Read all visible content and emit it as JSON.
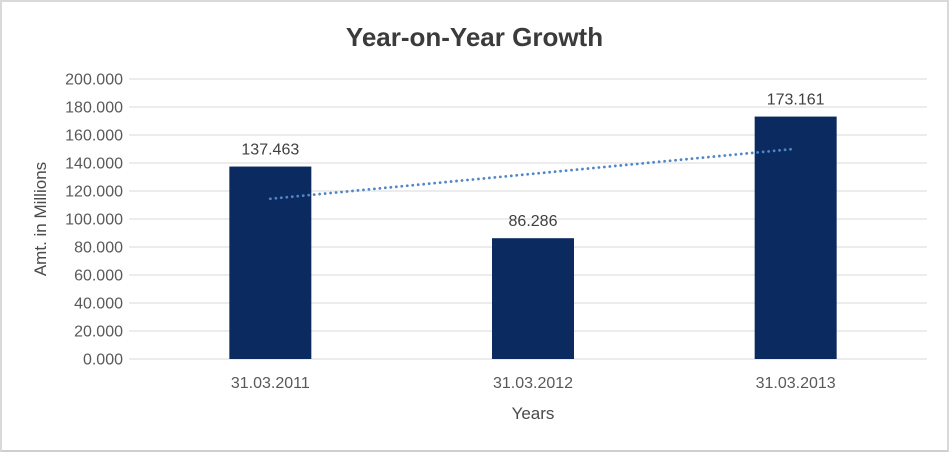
{
  "window": {
    "background": "#ffffff",
    "border_color": "#d9d9d9"
  },
  "chart_data": {
    "type": "bar",
    "title": "Year-on-Year Growth",
    "categories": [
      "31.03.2011",
      "31.03.2012",
      "31.03.2013"
    ],
    "values": [
      137.463,
      86.286,
      173.161
    ],
    "value_labels": [
      "137.463",
      "86.286",
      "173.161"
    ],
    "xlabel": "Years",
    "ylabel": "Amt. in Millions",
    "ylim": [
      0,
      200
    ],
    "ytick_step": 20,
    "ytick_labels": [
      "0.000",
      "20.000",
      "40.000",
      "60.000",
      "80.000",
      "100.000",
      "120.000",
      "140.000",
      "160.000",
      "180.000",
      "200.000"
    ],
    "grid": true,
    "legend": false,
    "bar_color": "#0b2a60",
    "data_label_color": "#404040",
    "tick_label_color": "#595959",
    "gridline_color": "#d9d9d9",
    "trendline": {
      "type": "linear",
      "style": "dotted",
      "color": "#4f86c6",
      "start_value": 114.45,
      "end_value": 150.15
    }
  }
}
